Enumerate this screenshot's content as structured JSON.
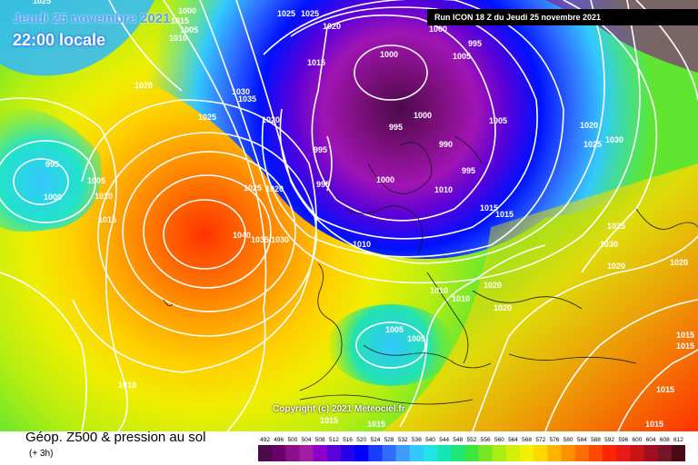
{
  "header": {
    "date": "Jeudi 25 novembre 2021",
    "time": "22:00 locale",
    "run": "Run ICON 18 Z du Jeudi 25 novembre 2021"
  },
  "footer": {
    "product": "Géop. Z500 & pression au sol",
    "lead": "(+ 3h)",
    "copyright": "Copyright (c) 2021 Meteociel.fr"
  },
  "scale": {
    "labels": [
      "492",
      "496",
      "500",
      "504",
      "508",
      "512",
      "516",
      "520",
      "524",
      "528",
      "532",
      "536",
      "540",
      "544",
      "548",
      "552",
      "556",
      "560",
      "564",
      "568",
      "572",
      "576",
      "580",
      "584",
      "588",
      "592",
      "596",
      "600",
      "604",
      "608",
      "612"
    ],
    "colors": [
      "#4b0a4b",
      "#6a006a",
      "#8a0f8a",
      "#a41ca4",
      "#8c00c8",
      "#5a00d8",
      "#2600e6",
      "#0000ff",
      "#1a3cff",
      "#2f6cff",
      "#3f9cff",
      "#33c8ff",
      "#22e3e6",
      "#14e6b4",
      "#1ee678",
      "#3ce63c",
      "#78e622",
      "#aaec14",
      "#d2f00a",
      "#f2f000",
      "#ffd800",
      "#ffb400",
      "#ff9000",
      "#ff6c00",
      "#ff4800",
      "#ff2400",
      "#e61a1a",
      "#c81414",
      "#a00f1e",
      "#781428",
      "#4a0a14"
    ]
  },
  "legend": {
    "colors": {
      "isobar": "#ffffff",
      "banner_bg": "#000000",
      "date_text": "#5aa0ff",
      "time_text": "#ffffff"
    }
  },
  "isobars": [
    {
      "label": "1000",
      "id": "l1"
    },
    {
      "label": "1015",
      "id": "l2"
    },
    {
      "label": "1005",
      "id": "l3"
    },
    {
      "label": "1010",
      "id": "l4"
    },
    {
      "label": "1025",
      "id": "l5"
    },
    {
      "label": "1025",
      "id": "l6"
    },
    {
      "label": "1020",
      "id": "l7"
    },
    {
      "label": "1015",
      "id": "l8"
    },
    {
      "label": "1000",
      "id": "l9"
    },
    {
      "label": "1000",
      "id": "l10"
    },
    {
      "label": "995",
      "id": "l11"
    },
    {
      "label": "1005",
      "id": "l12"
    },
    {
      "label": "1020",
      "id": "l13"
    },
    {
      "label": "1030",
      "id": "l14"
    },
    {
      "label": "1035",
      "id": "l15"
    },
    {
      "label": "1025",
      "id": "l16"
    },
    {
      "label": "1020",
      "id": "l17"
    },
    {
      "label": "995",
      "id": "l18"
    },
    {
      "label": "1000",
      "id": "l19"
    },
    {
      "label": "995",
      "id": "l20"
    },
    {
      "label": "990",
      "id": "l21"
    },
    {
      "label": "1020",
      "id": "l22"
    },
    {
      "label": "1025",
      "id": "l23"
    },
    {
      "label": "1030",
      "id": "l24"
    },
    {
      "label": "995",
      "id": "l25"
    },
    {
      "label": "995",
      "id": "l26"
    },
    {
      "label": "1005",
      "id": "l27"
    },
    {
      "label": "1010",
      "id": "l28"
    },
    {
      "label": "1000",
      "id": "l29"
    },
    {
      "label": "1015",
      "id": "l30"
    },
    {
      "label": "995",
      "id": "l31"
    },
    {
      "label": "1015",
      "id": "l32"
    },
    {
      "label": "1015",
      "id": "l33"
    },
    {
      "label": "1025",
      "id": "l34"
    },
    {
      "label": "1020",
      "id": "l35"
    },
    {
      "label": "1040",
      "id": "l36"
    },
    {
      "label": "1035",
      "id": "l37"
    },
    {
      "label": "1030",
      "id": "l38"
    },
    {
      "label": "1010",
      "id": "l39"
    },
    {
      "label": "1025",
      "id": "l40"
    },
    {
      "label": "1030",
      "id": "l41"
    },
    {
      "label": "1020",
      "id": "l42"
    },
    {
      "label": "1020",
      "id": "l43"
    },
    {
      "label": "1010",
      "id": "l44"
    },
    {
      "label": "1010",
      "id": "l45"
    },
    {
      "label": "1020",
      "id": "l46"
    },
    {
      "label": "1020",
      "id": "l47"
    },
    {
      "label": "1005",
      "id": "l48"
    },
    {
      "label": "1005",
      "id": "l49"
    },
    {
      "label": "1010",
      "id": "l50"
    },
    {
      "label": "1015",
      "id": "l51"
    },
    {
      "label": "1015",
      "id": "l52"
    },
    {
      "label": "1015",
      "id": "l53"
    },
    {
      "label": "1015",
      "id": "l54"
    },
    {
      "label": "1015",
      "id": "l55"
    },
    {
      "label": "1015",
      "id": "l56"
    },
    {
      "label": "1005",
      "id": "l57"
    },
    {
      "label": "1010",
      "id": "l58"
    },
    {
      "label": "1000",
      "id": "l59"
    },
    {
      "label": "1025",
      "id": "l60"
    }
  ]
}
